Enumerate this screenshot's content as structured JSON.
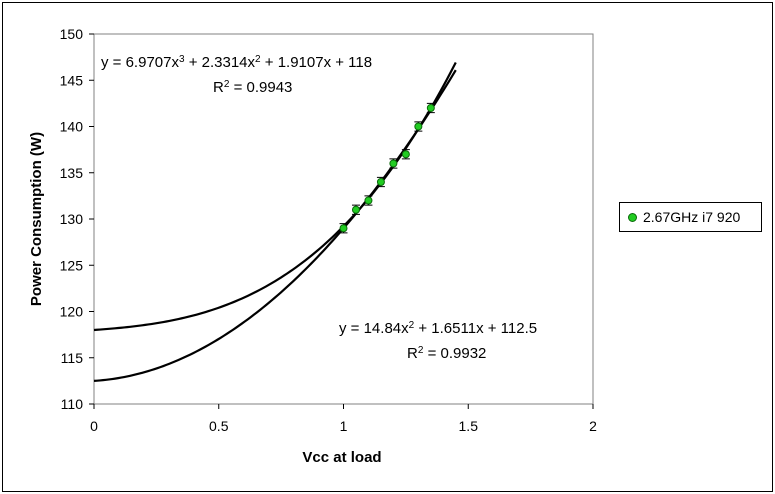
{
  "chart_data": {
    "type": "scatter",
    "xlabel": "Vcc at load",
    "ylabel": "Power Consumption (W)",
    "xlim": [
      0,
      2
    ],
    "ylim": [
      110,
      150
    ],
    "xticks": [
      "0",
      "0.5",
      "1",
      "1.5",
      "2"
    ],
    "yticks": [
      "110",
      "115",
      "120",
      "125",
      "130",
      "135",
      "140",
      "145",
      "150"
    ],
    "grid": false,
    "legend_position": "right",
    "series": [
      {
        "name": "2.67GHz i7 920",
        "color": "#22cc22",
        "points": [
          {
            "x": 1.0,
            "y": 129,
            "err": 0.5
          },
          {
            "x": 1.05,
            "y": 131,
            "err": 0.5
          },
          {
            "x": 1.1,
            "y": 132,
            "err": 0.5
          },
          {
            "x": 1.15,
            "y": 134,
            "err": 0.5
          },
          {
            "x": 1.2,
            "y": 136,
            "err": 0.5
          },
          {
            "x": 1.25,
            "y": 137,
            "err": 0.5
          },
          {
            "x": 1.3,
            "y": 140,
            "err": 0.5
          },
          {
            "x": 1.35,
            "y": 142,
            "err": 0.5
          }
        ]
      }
    ],
    "trendlines": [
      {
        "kind": "poly3",
        "coefficients": [
          6.9707,
          2.3314,
          1.9107,
          118
        ],
        "x_range": [
          0,
          1.45
        ],
        "eq_text": [
          "y = 6.9707x",
          "3",
          " + 2.3314x",
          "2",
          " + 1.9107x + 118"
        ],
        "r2_text": [
          "R",
          "2",
          " = 0.9943"
        ]
      },
      {
        "kind": "poly2",
        "coefficients": [
          14.84,
          1.6511,
          112.5
        ],
        "x_range": [
          0,
          1.45
        ],
        "eq_text": [
          "y = 14.84x",
          "2",
          " + 1.6511x + 112.5"
        ],
        "r2_text": [
          "R",
          "2",
          " = 0.9932"
        ]
      }
    ]
  }
}
